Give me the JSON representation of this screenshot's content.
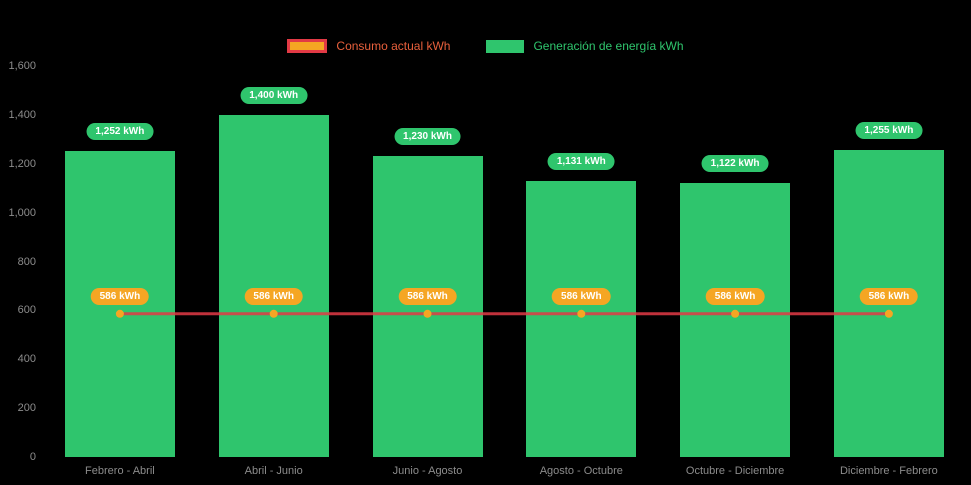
{
  "chart_data": {
    "type": "bar",
    "categories": [
      "Febrero - Abril",
      "Abril - Junio",
      "Junio - Agosto",
      "Agosto - Octubre",
      "Octubre - Diciembre",
      "Diciembre - Febrero"
    ],
    "series": [
      {
        "name": "Generación de energía kWh",
        "type": "bar",
        "color": "#2fc56d",
        "values": [
          1252,
          1400,
          1230,
          1131,
          1122,
          1255
        ],
        "labels": [
          "1,252 kWh",
          "1,400 kWh",
          "1,230 kWh",
          "1,131 kWh",
          "1,122 kWh",
          "1,255 kWh"
        ]
      },
      {
        "name": "Consumo actual kWh",
        "type": "line",
        "color": "#e23a45",
        "marker_color": "#f5a623",
        "values": [
          586,
          586,
          586,
          586,
          586,
          586
        ],
        "labels": [
          "586 kWh",
          "586 kWh",
          "586 kWh",
          "586 kWh",
          "586 kWh",
          "586 kWh"
        ]
      }
    ],
    "ylim": [
      0,
      1600
    ],
    "yticks": [
      0,
      200,
      400,
      600,
      800,
      1000,
      1200,
      1400,
      1600
    ],
    "ytick_labels": [
      "0",
      "200",
      "400",
      "600",
      "800",
      "1,000",
      "1,200",
      "1,400",
      "1,600"
    ],
    "legend_position": "top",
    "grid": false,
    "title": ""
  },
  "colors": {
    "background": "#000000",
    "axis_text": "#8c8c8c",
    "bar_green": "#2fc56d",
    "line_red": "#e23a45",
    "marker_orange": "#f5a623"
  }
}
